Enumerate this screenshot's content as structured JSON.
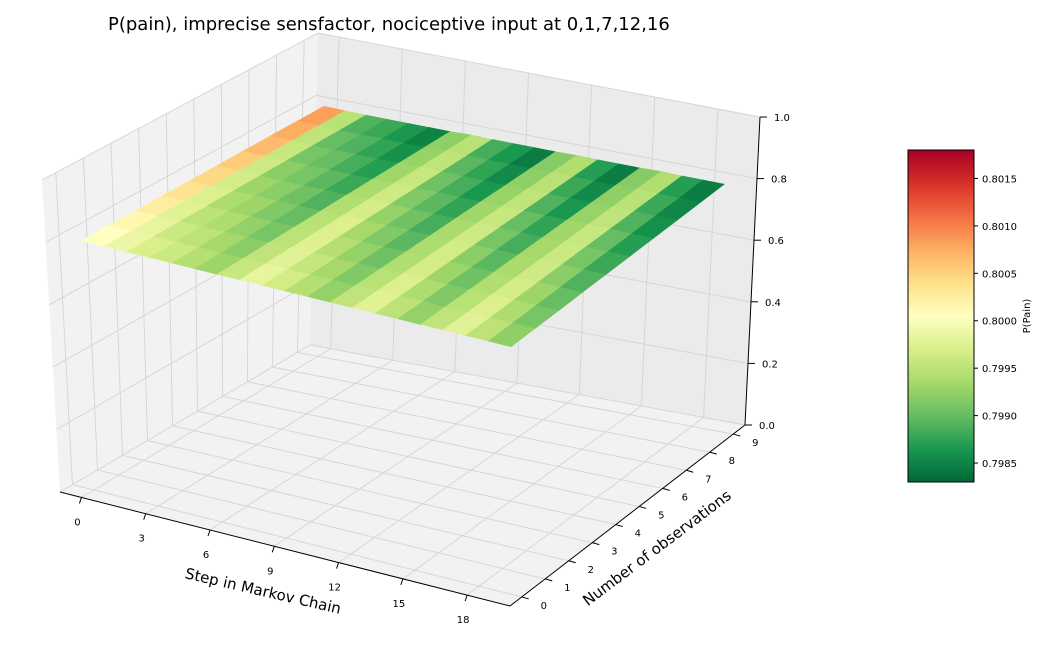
{
  "chart_data": {
    "type": "surface3d",
    "title": "P(pain), imprecise sensfactor, nociceptive input at 0,1,7,12,16",
    "xlabel": "Step in Markov Chain",
    "ylabel": "Number of observations",
    "zlabel": "",
    "x_ticks": [
      "0",
      "3",
      "6",
      "9",
      "12",
      "15",
      "18"
    ],
    "y_ticks": [
      "0",
      "1",
      "2",
      "3",
      "4",
      "5",
      "6",
      "7",
      "8",
      "9"
    ],
    "z_ticks": [
      "0.0",
      "0.2",
      "0.4",
      "0.6",
      "0.8",
      "1.0"
    ],
    "xlim": [
      -1,
      20
    ],
    "ylim": [
      -0.5,
      9.5
    ],
    "zlim": [
      0,
      1
    ],
    "nociceptive_input_steps": [
      0,
      1,
      7,
      12,
      16
    ],
    "steps": [
      0,
      1,
      2,
      3,
      4,
      5,
      6,
      7,
      8,
      9,
      10,
      11,
      12,
      13,
      14,
      15,
      16,
      17,
      18,
      19
    ],
    "observations": [
      0,
      1,
      2,
      3,
      4,
      5,
      6,
      7,
      8,
      9
    ],
    "p_pain": [
      [
        0.8,
        0.8,
        0.7998,
        0.7997,
        0.7996,
        0.7994,
        0.7993,
        0.7999,
        0.7998,
        0.7996,
        0.7994,
        0.7992,
        0.7999,
        0.7997,
        0.7994,
        0.7992,
        0.7999,
        0.7997,
        0.7994,
        0.7992
      ],
      [
        0.8002,
        0.8,
        0.7997,
        0.7996,
        0.7995,
        0.7993,
        0.7992,
        0.7999,
        0.7997,
        0.7995,
        0.7993,
        0.7991,
        0.7999,
        0.7996,
        0.7993,
        0.7991,
        0.7999,
        0.7996,
        0.7993,
        0.799
      ],
      [
        0.8004,
        0.8,
        0.7996,
        0.7995,
        0.7994,
        0.7992,
        0.7991,
        0.7999,
        0.7996,
        0.7994,
        0.7992,
        0.799,
        0.7999,
        0.7995,
        0.7992,
        0.799,
        0.7999,
        0.7995,
        0.7992,
        0.7989
      ],
      [
        0.8006,
        0.8,
        0.7995,
        0.7994,
        0.7993,
        0.7991,
        0.799,
        0.8,
        0.7995,
        0.7993,
        0.7991,
        0.7989,
        0.7999,
        0.7994,
        0.7991,
        0.7989,
        0.7999,
        0.7994,
        0.7991,
        0.7988
      ],
      [
        0.8008,
        0.8,
        0.7994,
        0.7993,
        0.7992,
        0.799,
        0.7989,
        0.8,
        0.7994,
        0.7992,
        0.799,
        0.7988,
        0.8,
        0.7993,
        0.799,
        0.7988,
        0.7999,
        0.7993,
        0.799,
        0.7987
      ],
      [
        0.801,
        0.8,
        0.7993,
        0.7992,
        0.7991,
        0.7989,
        0.7988,
        0.8,
        0.7993,
        0.7991,
        0.7989,
        0.7987,
        0.8,
        0.7992,
        0.7989,
        0.7987,
        0.8,
        0.7992,
        0.7989,
        0.7986
      ],
      [
        0.8012,
        0.8,
        0.7992,
        0.7991,
        0.799,
        0.7988,
        0.7987,
        0.8,
        0.7992,
        0.799,
        0.7988,
        0.7986,
        0.8,
        0.7991,
        0.7988,
        0.7986,
        0.8,
        0.7991,
        0.7988,
        0.7985
      ],
      [
        0.8014,
        0.8,
        0.7991,
        0.799,
        0.7989,
        0.7987,
        0.7986,
        0.8,
        0.7991,
        0.7989,
        0.7987,
        0.7985,
        0.8,
        0.799,
        0.7987,
        0.7985,
        0.8,
        0.799,
        0.7987,
        0.7984
      ],
      [
        0.8016,
        0.8,
        0.799,
        0.7989,
        0.7988,
        0.7986,
        0.7985,
        0.8,
        0.799,
        0.7988,
        0.7986,
        0.7984,
        0.8,
        0.7989,
        0.7986,
        0.7984,
        0.8,
        0.7989,
        0.7986,
        0.7984
      ],
      [
        0.8017,
        0.8,
        0.7989,
        0.7988,
        0.7987,
        0.7985,
        0.7984,
        0.8,
        0.7989,
        0.7987,
        0.7985,
        0.7983,
        0.8,
        0.7988,
        0.7985,
        0.7983,
        0.8,
        0.7988,
        0.7985,
        0.7983
      ]
    ],
    "colormap": "RdYlGn_r",
    "colormap_stops": [
      "#006837",
      "#1a9850",
      "#66bd63",
      "#a6d96a",
      "#d9ef8b",
      "#ffffbf",
      "#fee08b",
      "#fdae61",
      "#f46d43",
      "#d73027",
      "#a50026"
    ],
    "colorbar": {
      "label": "P(Pain)",
      "ticks": [
        "0.7985",
        "0.7990",
        "0.7995",
        "0.8000",
        "0.8005",
        "0.8010",
        "0.8015"
      ],
      "vmin": 0.7983,
      "vmax": 0.8018
    },
    "grid": true
  }
}
